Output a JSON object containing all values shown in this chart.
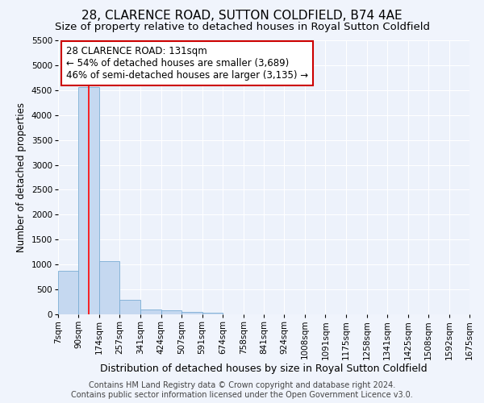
{
  "title": "28, CLARENCE ROAD, SUTTON COLDFIELD, B74 4AE",
  "subtitle": "Size of property relative to detached houses in Royal Sutton Coldfield",
  "xlabel": "Distribution of detached houses by size in Royal Sutton Coldfield",
  "ylabel": "Number of detached properties",
  "footer_line1": "Contains HM Land Registry data © Crown copyright and database right 2024.",
  "footer_line2": "Contains public sector information licensed under the Open Government Licence v3.0.",
  "annotation_title": "28 CLARENCE ROAD: 131sqm",
  "annotation_line2": "← 54% of detached houses are smaller (3,689)",
  "annotation_line3": "46% of semi-detached houses are larger (3,135) →",
  "bin_labels": [
    "7sqm",
    "90sqm",
    "174sqm",
    "257sqm",
    "341sqm",
    "424sqm",
    "507sqm",
    "591sqm",
    "674sqm",
    "758sqm",
    "841sqm",
    "924sqm",
    "1008sqm",
    "1091sqm",
    "1175sqm",
    "1258sqm",
    "1341sqm",
    "1425sqm",
    "1508sqm",
    "1592sqm",
    "1675sqm"
  ],
  "bin_edges": [
    7,
    90,
    174,
    257,
    341,
    424,
    507,
    591,
    674,
    758,
    841,
    924,
    1008,
    1091,
    1175,
    1258,
    1341,
    1425,
    1508,
    1592,
    1675
  ],
  "bar_values": [
    880,
    4560,
    1060,
    290,
    90,
    80,
    55,
    40,
    0,
    0,
    0,
    0,
    0,
    0,
    0,
    0,
    0,
    0,
    0,
    0
  ],
  "bar_color": "#c5d8f0",
  "bar_edge_color": "#7aadd4",
  "red_line_x": 131,
  "ylim": [
    0,
    5500
  ],
  "yticks": [
    0,
    500,
    1000,
    1500,
    2000,
    2500,
    3000,
    3500,
    4000,
    4500,
    5000,
    5500
  ],
  "background_color": "#f0f4fc",
  "plot_bg_color": "#edf2fb",
  "grid_color": "#ffffff",
  "annotation_box_facecolor": "#ffffff",
  "annotation_box_edgecolor": "#cc0000",
  "title_fontsize": 11,
  "subtitle_fontsize": 9.5,
  "ylabel_fontsize": 8.5,
  "xlabel_fontsize": 9,
  "tick_fontsize": 7.5,
  "annotation_fontsize": 8.5,
  "footer_fontsize": 7
}
